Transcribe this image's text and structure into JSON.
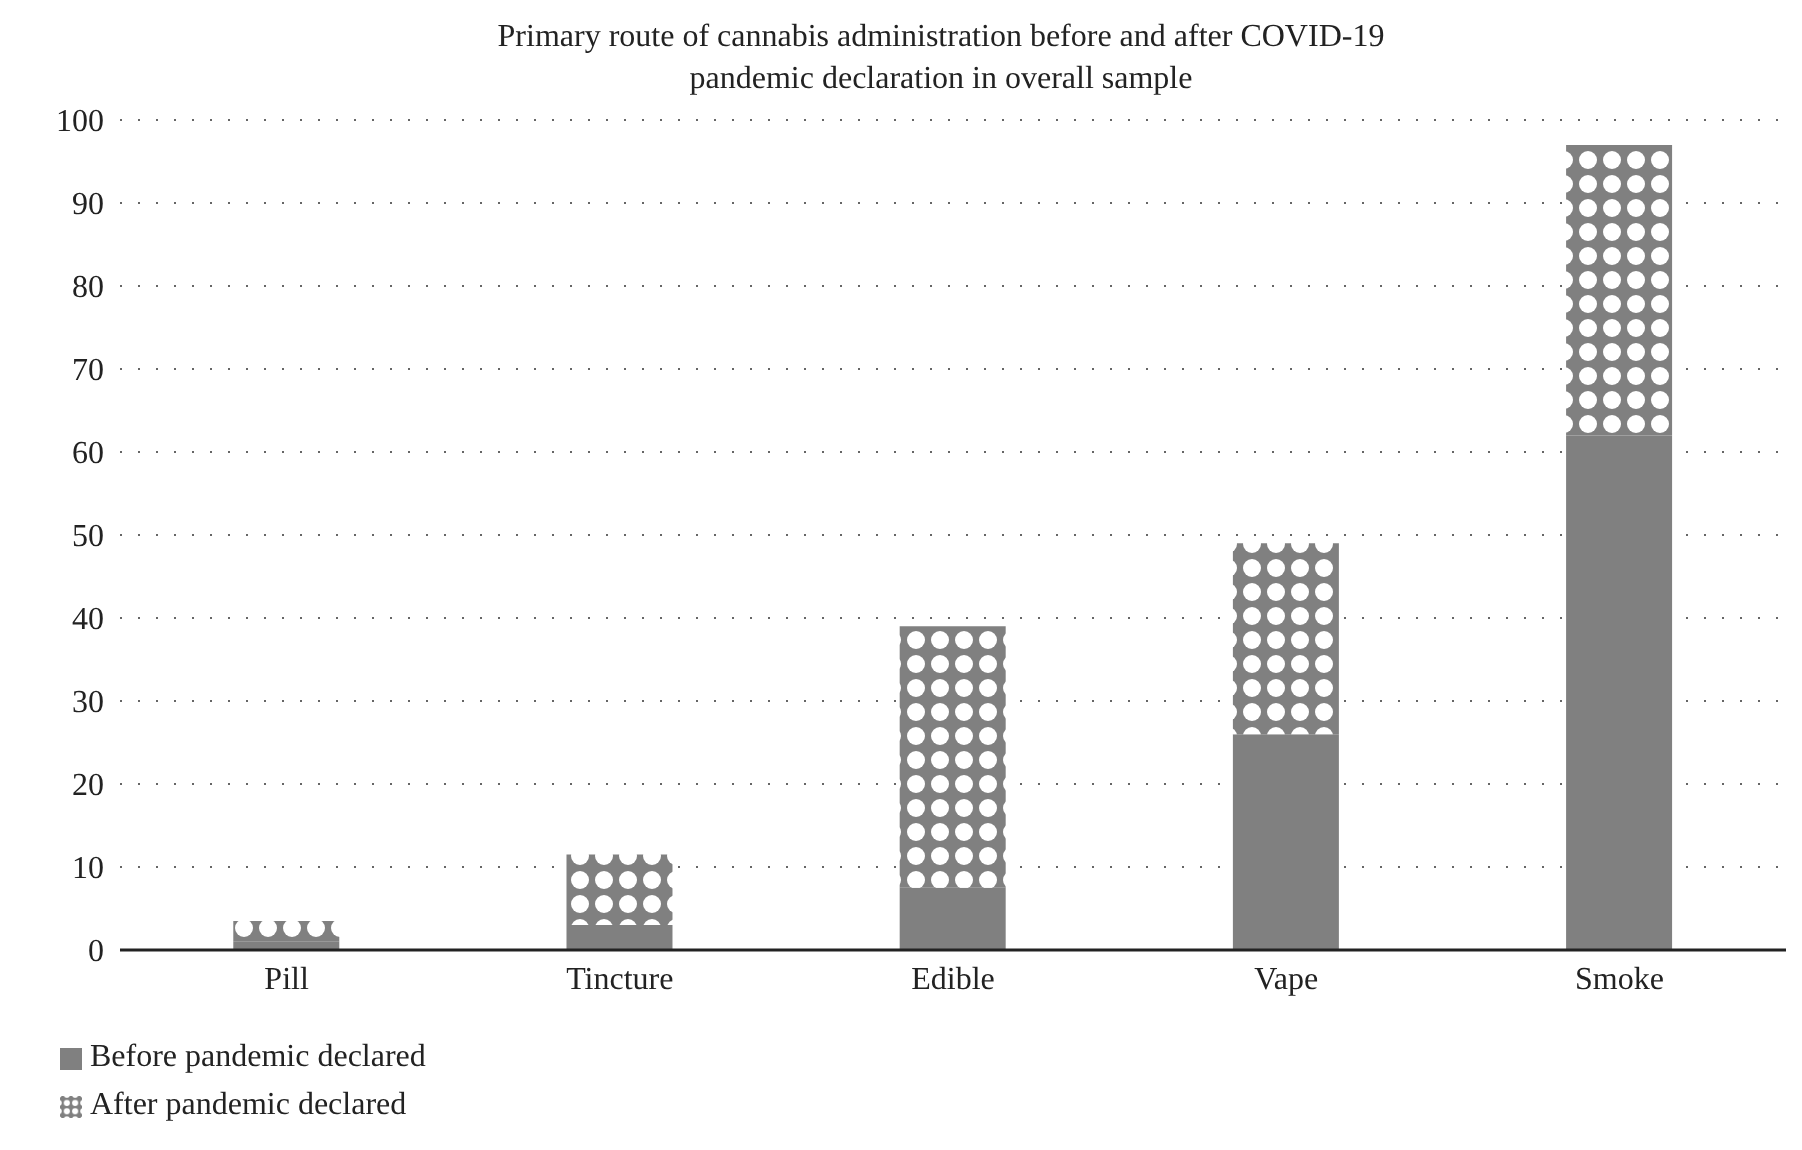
{
  "chart_data": {
    "type": "bar",
    "title": "Primary route of cannabis administration before and after COVID-19 pandemic declaration in overall sample",
    "categories": [
      "Pill",
      "Tincture",
      "Edible",
      "Vape",
      "Smoke"
    ],
    "stacked": true,
    "series": [
      {
        "name": "Before pandemic declared",
        "color": "#808080",
        "values": [
          1,
          3,
          7.5,
          26,
          62
        ]
      },
      {
        "name": "After pandemic declared",
        "color": "#808080",
        "values": [
          2.5,
          8.5,
          31.5,
          23,
          35
        ]
      }
    ],
    "ylim": [
      0,
      100
    ],
    "yticks": [
      0,
      10,
      20,
      30,
      40,
      50,
      60,
      70,
      80,
      90,
      100
    ],
    "grid": "y",
    "legend": "bottom left"
  }
}
